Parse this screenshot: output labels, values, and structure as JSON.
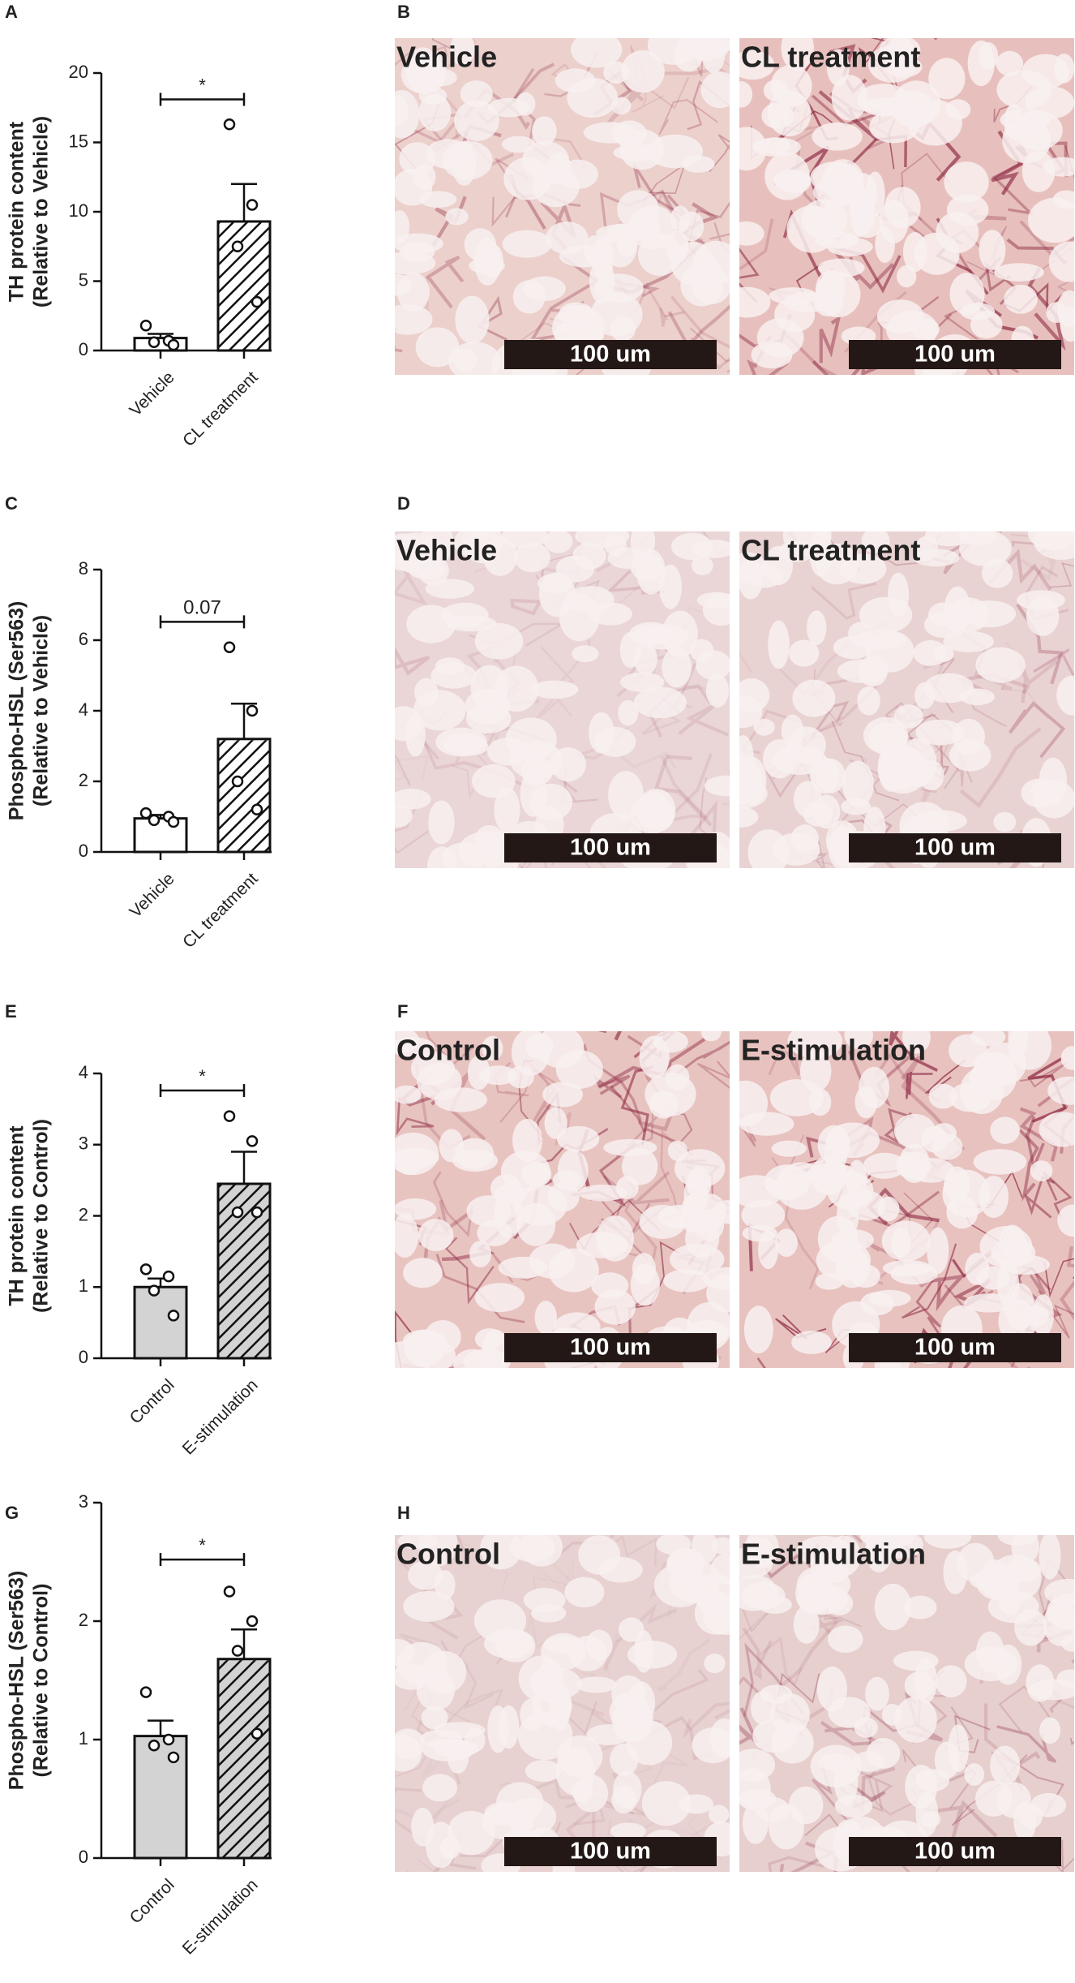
{
  "chart_data": [
    {
      "type": "bar",
      "panel": "A",
      "ylabel_lines": [
        "TH protein content",
        "(Relative to Vehicle)"
      ],
      "categories": [
        "Vehicle",
        "CL treatment"
      ],
      "values": [
        0.9,
        9.3
      ],
      "errors": [
        0.3,
        2.7
      ],
      "points": [
        [
          1.8,
          0.7,
          0.6,
          0.4
        ],
        [
          16.3,
          10.5,
          7.5,
          3.5
        ]
      ],
      "colors": [
        "#ffffff",
        "#ffffff"
      ],
      "hatched": [
        false,
        true
      ],
      "annotation": "*",
      "ylim": [
        0,
        20
      ],
      "yticks": [
        0,
        5,
        10,
        15,
        20
      ]
    },
    {
      "type": "bar",
      "panel": "C",
      "ylabel_lines": [
        "Phospho-HSL (Ser563)",
        "(Relative to Vehicle)"
      ],
      "categories": [
        "Vehicle",
        "CL treatment"
      ],
      "values": [
        0.95,
        3.2
      ],
      "errors": [
        0.1,
        1.0
      ],
      "points": [
        [
          1.1,
          1.0,
          0.9,
          0.85
        ],
        [
          5.8,
          4.0,
          2.0,
          1.2
        ]
      ],
      "colors": [
        "#ffffff",
        "#ffffff"
      ],
      "hatched": [
        false,
        true
      ],
      "annotation": "0.07",
      "ylim": [
        0,
        8
      ],
      "yticks": [
        0,
        2,
        4,
        6,
        8
      ]
    },
    {
      "type": "bar",
      "panel": "E",
      "ylabel_lines": [
        "TH protein content",
        "(Relative to Control)"
      ],
      "categories": [
        "Control",
        "E-stimulation"
      ],
      "values": [
        1.0,
        2.45
      ],
      "errors": [
        0.12,
        0.45
      ],
      "points": [
        [
          1.25,
          1.15,
          0.95,
          0.6
        ],
        [
          3.4,
          3.05,
          2.05,
          2.05
        ]
      ],
      "colors": [
        "#d3d3d3",
        "#d3d3d3"
      ],
      "hatched": [
        false,
        true
      ],
      "annotation": "*",
      "ylim": [
        0,
        4
      ],
      "yticks": [
        0,
        1,
        2,
        3,
        4
      ]
    },
    {
      "type": "bar",
      "panel": "G",
      "ylabel_lines": [
        "Phospho-HSL (Ser563)",
        "(Relative to Control)"
      ],
      "categories": [
        "Control",
        "E-stimulation"
      ],
      "values": [
        1.03,
        1.68
      ],
      "errors": [
        0.13,
        0.25
      ],
      "points": [
        [
          1.4,
          1.0,
          0.95,
          0.85
        ],
        [
          2.25,
          2.0,
          1.75,
          1.05
        ]
      ],
      "colors": [
        "#d3d3d3",
        "#d3d3d3"
      ],
      "hatched": [
        false,
        true
      ],
      "annotation": "*",
      "ylim": [
        0,
        3
      ],
      "yticks": [
        0,
        1,
        2,
        3
      ]
    }
  ],
  "images": [
    {
      "panel": "B",
      "labels": [
        "Vehicle",
        "CL treatment"
      ],
      "scale_bar": "100 um"
    },
    {
      "panel": "D",
      "labels": [
        "Vehicle",
        "CL treatment"
      ],
      "scale_bar": "100 um"
    },
    {
      "panel": "F",
      "labels": [
        "Control",
        "E-stimulation"
      ],
      "scale_bar": "100 um"
    },
    {
      "panel": "H",
      "labels": [
        "Control",
        "E-stimulation"
      ],
      "scale_bar": "100 um"
    }
  ]
}
